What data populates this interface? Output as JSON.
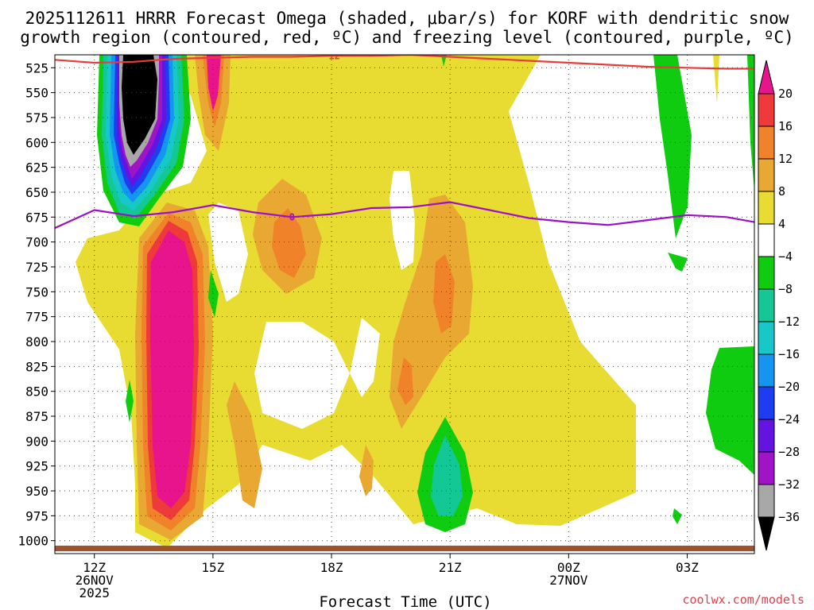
{
  "chart_data": {
    "type": "heatmap",
    "title_line1": "2025112611 HRRR Forecast Omega (shaded, μbar/s) for KORF with dendritic snow",
    "title_line2": "growth region (contoured, red, ºC) and freezing level (contoured, purple, ºC)",
    "xlabel": "Forecast Time (UTC)",
    "credit": "coolwx.com/models",
    "x_range_hours": [
      11.0,
      28.7
    ],
    "y_range_hpa": [
      512,
      1013
    ],
    "y_ticks": [
      525,
      550,
      575,
      600,
      625,
      650,
      675,
      700,
      725,
      750,
      775,
      800,
      825,
      850,
      875,
      900,
      925,
      950,
      975,
      1000
    ],
    "x_ticks": [
      {
        "hour": 12,
        "label": "12Z",
        "sub1": "26NOV",
        "sub2": "2025"
      },
      {
        "hour": 15,
        "label": "15Z",
        "sub1": "",
        "sub2": ""
      },
      {
        "hour": 18,
        "label": "18Z",
        "sub1": "",
        "sub2": ""
      },
      {
        "hour": 21,
        "label": "21Z",
        "sub1": "",
        "sub2": ""
      },
      {
        "hour": 24,
        "label": "00Z",
        "sub1": "27NOV",
        "sub2": ""
      },
      {
        "hour": 27,
        "label": "03Z",
        "sub1": "",
        "sub2": ""
      }
    ],
    "colorbar": {
      "labels": [
        "20",
        "16",
        "12",
        "8",
        "4",
        "−4",
        "−8",
        "−12",
        "−16",
        "−20",
        "−24",
        "−28",
        "−32",
        "−36"
      ],
      "bins": [
        {
          "lo": 20,
          "hi": 24,
          "color": "#e8148c"
        },
        {
          "lo": 16,
          "hi": 20,
          "color": "#ee3a3a"
        },
        {
          "lo": 12,
          "hi": 16,
          "color": "#f0822a"
        },
        {
          "lo": 8,
          "hi": 12,
          "color": "#e8a832"
        },
        {
          "lo": 4,
          "hi": 8,
          "color": "#e8dc32"
        },
        {
          "lo": -4,
          "hi": 4,
          "color": "#ffffff"
        },
        {
          "lo": -8,
          "hi": -4,
          "color": "#10cc10"
        },
        {
          "lo": -12,
          "hi": -8,
          "color": "#14c896"
        },
        {
          "lo": -16,
          "hi": -12,
          "color": "#18c8c8"
        },
        {
          "lo": -20,
          "hi": -16,
          "color": "#1496f0"
        },
        {
          "lo": -24,
          "hi": -20,
          "color": "#1e3cf0"
        },
        {
          "lo": -28,
          "hi": -24,
          "color": "#6414e0"
        },
        {
          "lo": -32,
          "hi": -28,
          "color": "#a014c8"
        },
        {
          "lo": -36,
          "hi": -32,
          "color": "#a8a8a8"
        },
        {
          "lo": -40,
          "hi": -36,
          "color": "#000000"
        }
      ]
    },
    "contour_dgz": {
      "level_label": "−12",
      "color": "#e83c3c",
      "points": [
        [
          11.0,
          517
        ],
        [
          12.0,
          520
        ],
        [
          13.0,
          519
        ],
        [
          14.0,
          516
        ],
        [
          15.0,
          515
        ],
        [
          16.0,
          514
        ],
        [
          17.0,
          514
        ],
        [
          18.0,
          513
        ],
        [
          19.0,
          513
        ],
        [
          20.0,
          512
        ],
        [
          21.0,
          514
        ],
        [
          22.0,
          516
        ],
        [
          23.0,
          518
        ],
        [
          24.0,
          520
        ],
        [
          25.0,
          522
        ],
        [
          26.0,
          524
        ],
        [
          27.0,
          525
        ],
        [
          28.0,
          526
        ],
        [
          28.7,
          526
        ]
      ]
    },
    "contour_freezing": {
      "level_label": "0",
      "color": "#9b10c8",
      "points": [
        [
          11.0,
          686
        ],
        [
          12.0,
          668
        ],
        [
          13.0,
          674
        ],
        [
          14.0,
          670
        ],
        [
          15.0,
          663
        ],
        [
          16.0,
          670
        ],
        [
          17.0,
          675
        ],
        [
          18.0,
          672
        ],
        [
          19.0,
          666
        ],
        [
          20.0,
          665
        ],
        [
          21.0,
          660
        ],
        [
          22.0,
          668
        ],
        [
          23.0,
          676
        ],
        [
          24.0,
          680
        ],
        [
          25.0,
          683
        ],
        [
          26.0,
          678
        ],
        [
          27.0,
          673
        ],
        [
          28.0,
          675
        ],
        [
          28.7,
          680
        ]
      ]
    },
    "ground_layer_color": "#a0522d"
  }
}
